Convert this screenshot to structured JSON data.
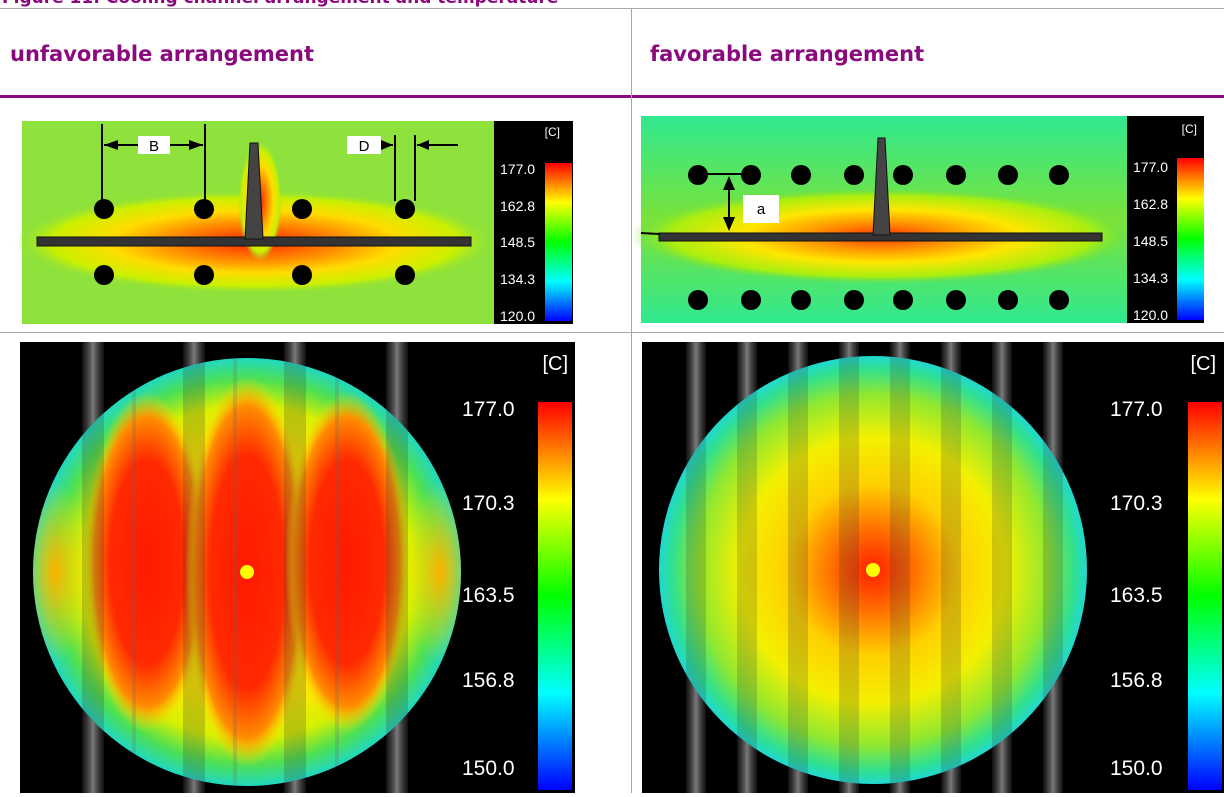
{
  "caption": "Figure 11: Cooling channel arrangement and temperature",
  "columns": [
    {
      "heading": "unfavorable arrangement"
    },
    {
      "heading": "favorable arrangement"
    }
  ],
  "unit": "[C]",
  "cross_section_scale": [
    "177.0",
    "162.8",
    "148.5",
    "134.3",
    "120.0"
  ],
  "top_view_scale": [
    "177.0",
    "170.3",
    "163.5",
    "156.8",
    "150.0"
  ],
  "dimension_labels": {
    "spacing": "B",
    "diameter": "D",
    "distance": "a"
  },
  "colors": {
    "heading": "#8a0a7e",
    "part_hot": "#ff1a00",
    "background_mold": "#8fe23b",
    "channel": "#000000"
  }
}
